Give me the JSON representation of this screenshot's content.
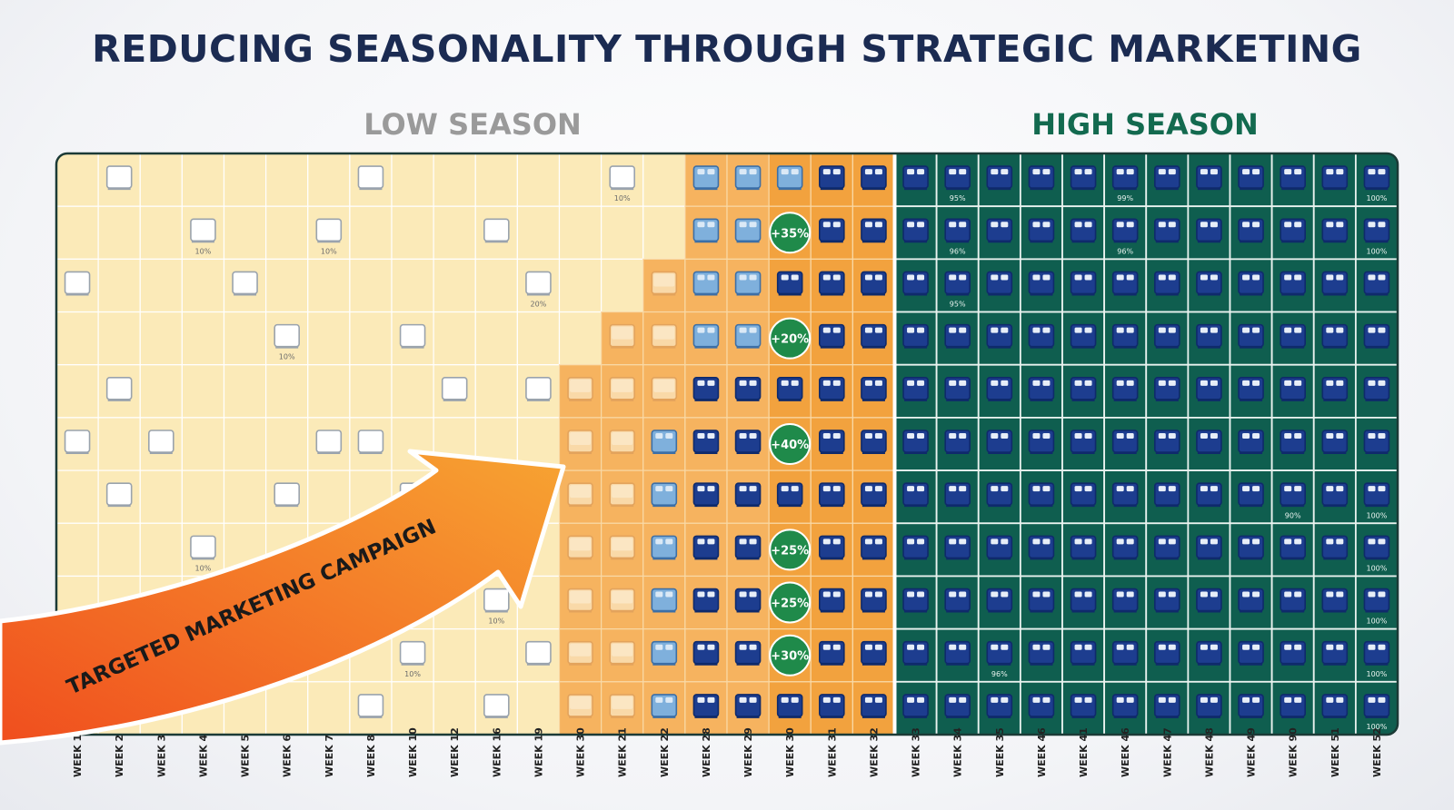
{
  "title": "REDUCING SEASONALITY THROUGH STRATEGIC MARKETING",
  "low_season_label": "LOW SEASON",
  "high_season_label": "HIGH SEASON",
  "campaign_label": "TARGETED MARKETING CAMPAIGN",
  "weeks": [
    "WEEK 1",
    "WEEK 2",
    "WEEK 3",
    "WEEK 4",
    "WEEK 5",
    "WEEK 6",
    "WEEK 7",
    "WEEK 8",
    "WEEK 10",
    "WEEK 12",
    "WEEK 16",
    "WEEK 19",
    "WEEK 30",
    "WEEK 21",
    "WEEK 22",
    "WEEK 28",
    "WEEK 29",
    "WEEK 30",
    "WEEK 31",
    "WEEK 32",
    "WEEK 33",
    "WEEK 34",
    "WEEK 35",
    "WEEK 46",
    "WEEK 41",
    "WEEK 46",
    "WEEK 47",
    "WEEK 48",
    "WEEK 49",
    "WEEK 90",
    "WEEK 51",
    "WEEK 52"
  ],
  "badges": [
    {
      "row": 1,
      "text": "+35%"
    },
    {
      "row": 3,
      "text": "+20%"
    },
    {
      "row": 5,
      "text": "+40%"
    },
    {
      "row": 7,
      "text": "+25%"
    },
    {
      "row": 8,
      "text": "+25%"
    },
    {
      "row": 9,
      "text": "+30%"
    }
  ],
  "cell_percent_labels": [
    {
      "row": 0,
      "col": 13,
      "text": "10%"
    },
    {
      "row": 1,
      "col": 3,
      "text": "10%"
    },
    {
      "row": 1,
      "col": 6,
      "text": "10%"
    },
    {
      "row": 2,
      "col": 11,
      "text": "20%"
    },
    {
      "row": 3,
      "col": 5,
      "text": "10%"
    },
    {
      "row": 7,
      "col": 3,
      "text": "10%"
    },
    {
      "row": 8,
      "col": 10,
      "text": "10%"
    },
    {
      "row": 9,
      "col": 8,
      "text": "10%"
    },
    {
      "row": 0,
      "col": 21,
      "text": "95%"
    },
    {
      "row": 0,
      "col": 25,
      "text": "99%"
    },
    {
      "row": 0,
      "col": 31,
      "text": "100%"
    },
    {
      "row": 1,
      "col": 21,
      "text": "96%"
    },
    {
      "row": 1,
      "col": 25,
      "text": "96%"
    },
    {
      "row": 1,
      "col": 31,
      "text": "100%"
    },
    {
      "row": 2,
      "col": 21,
      "text": "95%"
    },
    {
      "row": 6,
      "col": 29,
      "text": "90%"
    },
    {
      "row": 6,
      "col": 31,
      "text": "100%"
    },
    {
      "row": 7,
      "col": 31,
      "text": "100%"
    },
    {
      "row": 8,
      "col": 31,
      "text": "100%"
    },
    {
      "row": 9,
      "col": 31,
      "text": "100%"
    },
    {
      "row": 9,
      "col": 22,
      "text": "96%"
    },
    {
      "row": 10,
      "col": 31,
      "text": "100%"
    }
  ],
  "colors": {
    "title": "#1b2b52",
    "low_bg": "#fbeab8",
    "mid_bg": "#f6b35f",
    "high_bg": "#0f5e4f",
    "bed_navy": "#1d3d8f",
    "bed_light_blue": "#7fb0dc",
    "badge": "#1f8a4a",
    "arrow_start": "#f04e1e",
    "arrow_end": "#f7a432"
  }
}
